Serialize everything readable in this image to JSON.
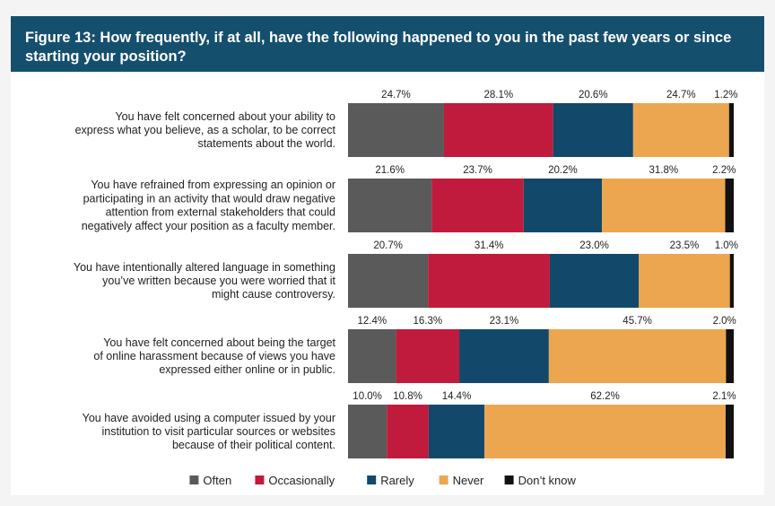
{
  "figure_title": "Figure 13: How frequently, if at all, have the following happened to you in the past few years or since starting your position?",
  "colors": {
    "header_bg": "#154f6e",
    "Often": "#5a5a5a",
    "Occasionally": "#c01b3c",
    "Rarely": "#12496a",
    "Never": "#eca64f",
    "Dont_know": "#111111"
  },
  "chart_data": {
    "type": "bar",
    "orientation": "horizontal",
    "stacked": true,
    "normalized_percent": true,
    "legend_position": "bottom",
    "grid": false,
    "xlim": [
      0,
      100
    ],
    "categories": [
      [
        "You have felt concerned about your ability to",
        "express what you believe, as a scholar, to be correct",
        "statements about the world."
      ],
      [
        "You have refrained from expressing an opinion or",
        "participating in an activity that would draw negative",
        "attention from external stakeholders that could",
        "negatively affect your position as a faculty member."
      ],
      [
        "You have intentionally altered language in something",
        "you’ve written because you were worried that it",
        "might cause controversy."
      ],
      [
        "You have felt concerned about being the target",
        "of online harassment because of views you have",
        "expressed either online or in public."
      ],
      [
        "You have avoided using a computer issued by your",
        "institution to visit particular sources or websites",
        "because of their political content."
      ]
    ],
    "series": [
      {
        "name": "Often",
        "values": [
          24.7,
          21.6,
          20.7,
          12.4,
          10.0
        ],
        "labels": [
          "24.7%",
          "21.6%",
          "20.7%",
          "12.4%",
          "10.0%"
        ]
      },
      {
        "name": "Occasionally",
        "values": [
          28.1,
          23.7,
          31.4,
          16.3,
          10.8
        ],
        "labels": [
          "28.1%",
          "23.7%",
          "31.4%",
          "16.3%",
          "10.8%"
        ]
      },
      {
        "name": "Rarely",
        "values": [
          20.6,
          20.2,
          23.0,
          23.1,
          14.4
        ],
        "labels": [
          "20.6%",
          "20.2%",
          "23.0%",
          "23.1%",
          "14.4%"
        ]
      },
      {
        "name": "Never",
        "values": [
          24.7,
          31.8,
          23.5,
          45.7,
          62.2
        ],
        "labels": [
          "24.7%",
          "31.8%",
          "23.5%",
          "45.7%",
          "62.2%"
        ]
      },
      {
        "name": "Don’t know",
        "values": [
          1.2,
          2.2,
          1.0,
          2.0,
          2.1
        ],
        "labels": [
          "1.2%",
          "2.2%",
          "1.0%",
          "2.0%",
          "2.1%"
        ]
      }
    ]
  }
}
